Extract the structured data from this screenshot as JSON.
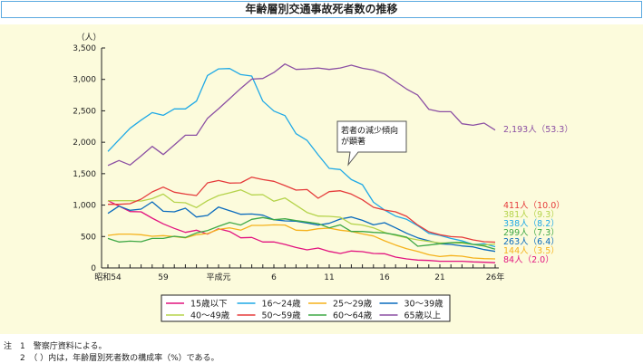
{
  "title": "年齢層別交通事故死者数の推移",
  "notes": [
    "注　1　警察庁資料による。",
    "　　2　（ ）内は，年齢層別死者数の構成率（%）である。"
  ],
  "chart_data": {
    "type": "line",
    "title": "年齢層別交通事故死者数の推移",
    "ylabel": "（人）",
    "ylim": [
      0,
      3500
    ],
    "yticks": [
      0,
      500,
      1000,
      1500,
      2000,
      2500,
      3000,
      3500
    ],
    "ytick_labels": [
      "0",
      "500",
      "1,000",
      "1,500",
      "2,000",
      "2,500",
      "3,000",
      "3,500"
    ],
    "x": [
      "昭和54",
      "55",
      "56",
      "57",
      "58",
      "59",
      "60",
      "61",
      "62",
      "63",
      "平成元",
      "2",
      "3",
      "4",
      "5",
      "6",
      "7",
      "8",
      "9",
      "10",
      "11",
      "12",
      "13",
      "14",
      "15",
      "16",
      "17",
      "18",
      "19",
      "20",
      "21",
      "22",
      "23",
      "24",
      "25",
      "26年"
    ],
    "xtick_labels": [
      {
        "index": 0,
        "label": "昭和54"
      },
      {
        "index": 5,
        "label": "59"
      },
      {
        "index": 10,
        "label": "平成元"
      },
      {
        "index": 15,
        "label": "6"
      },
      {
        "index": 20,
        "label": "11"
      },
      {
        "index": 25,
        "label": "16"
      },
      {
        "index": 30,
        "label": "21"
      },
      {
        "index": 35,
        "label": "26年"
      }
    ],
    "grid": false,
    "legend_placement": "bottom",
    "series": [
      {
        "name": "15歳以下",
        "color": "#e2137f",
        "end_label": "84人（2.0）",
        "values": [
          1070,
          984,
          898,
          893,
          792,
          701,
          629,
          566,
          600,
          538,
          624,
          581,
          480,
          485,
          413,
          413,
          374,
          326,
          288,
          317,
          264,
          230,
          269,
          259,
          230,
          226,
          173,
          144,
          125,
          120,
          106,
          106,
          106,
          96,
          91,
          84
        ]
      },
      {
        "name": "16～24歳",
        "color": "#1fa9e6",
        "end_label": "338人（8.2）",
        "values": [
          1853,
          2040,
          2222,
          2352,
          2472,
          2429,
          2530,
          2530,
          2654,
          3062,
          3168,
          3173,
          3077,
          3053,
          2654,
          2496,
          2424,
          2136,
          2030,
          1800,
          1584,
          1565,
          1406,
          1325,
          1046,
          922,
          826,
          773,
          672,
          552,
          518,
          470,
          432,
          374,
          384,
          338
        ]
      },
      {
        "name": "25～29歳",
        "color": "#f5b21c",
        "end_label": "144人（3.5）",
        "values": [
          518,
          538,
          538,
          528,
          504,
          514,
          499,
          480,
          528,
          547,
          614,
          638,
          600,
          677,
          677,
          686,
          682,
          600,
          595,
          624,
          634,
          600,
          581,
          542,
          509,
          432,
          365,
          307,
          264,
          211,
          182,
          197,
          187,
          158,
          149,
          144
        ]
      },
      {
        "name": "30～39歳",
        "color": "#0a6bbd",
        "end_label": "263人（6.4）",
        "values": [
          869,
          984,
          917,
          936,
          1051,
          902,
          893,
          950,
          811,
          835,
          970,
          912,
          854,
          859,
          840,
          768,
          749,
          744,
          715,
          682,
          710,
          778,
          811,
          758,
          686,
          720,
          638,
          552,
          480,
          432,
          384,
          374,
          350,
          336,
          293,
          263
        ]
      },
      {
        "name": "40～49歳",
        "color": "#b5d34b",
        "end_label": "381人（9.3）",
        "values": [
          1070,
          1070,
          1070,
          1065,
          1104,
          1176,
          1046,
          1037,
          960,
          1070,
          1152,
          1195,
          1243,
          1162,
          1166,
          1061,
          1114,
          998,
          883,
          826,
          821,
          806,
          701,
          682,
          638,
          566,
          518,
          480,
          446,
          422,
          398,
          398,
          394,
          374,
          365,
          381
        ]
      },
      {
        "name": "50～59歳",
        "color": "#e53b3b",
        "end_label": "411人（10.0）",
        "values": [
          1013,
          1013,
          1022,
          1094,
          1210,
          1286,
          1205,
          1176,
          1152,
          1354,
          1392,
          1349,
          1354,
          1445,
          1406,
          1378,
          1310,
          1238,
          1248,
          1109,
          1214,
          1229,
          1176,
          1085,
          965,
          922,
          893,
          821,
          682,
          576,
          528,
          499,
          490,
          446,
          418,
          411
        ]
      },
      {
        "name": "60～64歳",
        "color": "#3ea845",
        "end_label": "299人（7.3）",
        "values": [
          470,
          413,
          427,
          418,
          470,
          470,
          504,
          485,
          557,
          595,
          662,
          725,
          682,
          773,
          802,
          768,
          782,
          754,
          730,
          706,
          638,
          686,
          581,
          581,
          566,
          557,
          528,
          490,
          346,
          365,
          384,
          403,
          408,
          374,
          350,
          299
        ]
      },
      {
        "name": "65歳以上",
        "color": "#8b4fa3",
        "end_label": "2,193人（53.3）",
        "values": [
          1630,
          1709,
          1637,
          1781,
          1934,
          1805,
          1958,
          2112,
          2112,
          2381,
          2534,
          2693,
          2856,
          3005,
          3014,
          3110,
          3245,
          3158,
          3168,
          3182,
          3158,
          3182,
          3226,
          3178,
          3149,
          3086,
          2966,
          2846,
          2750,
          2525,
          2486,
          2486,
          2294,
          2270,
          2304,
          2193
        ]
      }
    ],
    "annotations": [
      {
        "text_lines": [
          "若者の減少傾向",
          "が顕著"
        ],
        "points_to": "16～24歳"
      }
    ]
  }
}
